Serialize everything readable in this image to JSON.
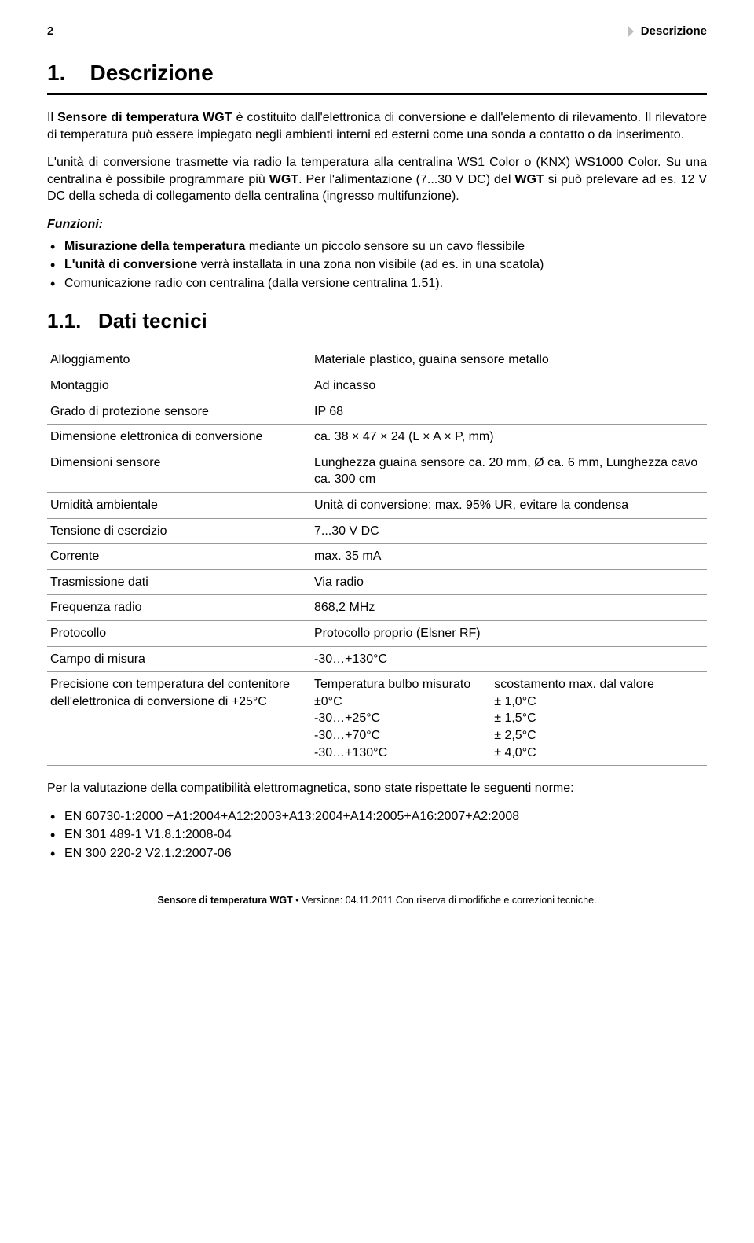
{
  "header": {
    "page_number": "2",
    "section_name": "Descrizione"
  },
  "section": {
    "number": "1.",
    "title": "Descrizione"
  },
  "para1_a": "Il ",
  "para1_b": "Sensore di temperatura WGT",
  "para1_c": " è costituito dall'elettronica di conversione e dall'elemento di rilevamento. Il rilevatore di temperatura può essere impiegato negli ambienti interni ed esterni come una sonda a contatto o da inserimento.",
  "para2_a": "L'unità di conversione trasmette via radio la temperatura alla centralina WS1 Color o (KNX) WS1000 Color. Su una centralina è possibile programmare più ",
  "para2_b": "WGT",
  "para2_c": ". Per l'alimentazione (7...30 V DC) del ",
  "para2_d": "WGT",
  "para2_e": " si può prelevare ad es. 12 V DC della scheda di collegamento della centralina (ingresso multifunzione).",
  "funzioni_label": "Funzioni:",
  "bullets1": [
    {
      "b": "Misurazione della temperatura",
      "rest": " mediante un piccolo sensore su un cavo flessibile"
    },
    {
      "b": "L'unità di conversione",
      "rest": " verrà installata in una zona non visibile (ad es. in una scatola)"
    },
    {
      "b": "",
      "rest": "Comunicazione radio con centralina (dalla versione centralina 1.51)."
    }
  ],
  "subsection": {
    "number": "1.1.",
    "title": "Dati tecnici"
  },
  "spec_rows": [
    {
      "label": "Alloggiamento",
      "value": "Materiale plastico, guaina sensore metallo"
    },
    {
      "label": "Montaggio",
      "value": "Ad incasso"
    },
    {
      "label": "Grado di protezione sensore",
      "value": "IP 68"
    },
    {
      "label": "Dimensione elettronica di conversione",
      "value": "ca. 38 × 47 × 24 (L × A × P, mm)"
    },
    {
      "label": "Dimensioni sensore",
      "value": "Lunghezza guaina sensore ca. 20 mm, Ø ca. 6 mm, Lunghezza cavo ca. 300 cm"
    },
    {
      "label": "Umidità ambientale",
      "value": "Unità di conversione: max. 95% UR, evitare la condensa"
    },
    {
      "label": "Tensione di esercizio",
      "value": "7...30 V DC"
    },
    {
      "label": "Corrente",
      "value": "max. 35 mA"
    },
    {
      "label": "Trasmissione dati",
      "value": "Via radio"
    },
    {
      "label": "Frequenza radio",
      "value": "868,2 MHz"
    },
    {
      "label": "Protocollo",
      "value": "Protocollo proprio (Elsner RF)"
    },
    {
      "label": "Campo di misura",
      "value": "-30…+130°C"
    }
  ],
  "precision_row": {
    "label": "Precisione con temperatura del contenitore dell'elettronica di conversione di +25°C",
    "col1_head": "Temperatura bulbo misurato",
    "col1": [
      "±0°C",
      "-30…+25°C",
      "-30…+70°C",
      "-30…+130°C"
    ],
    "col2_head": "scostamento max. dal valore",
    "col2": [
      "± 1,0°C",
      "± 1,5°C",
      "± 2,5°C",
      "± 4,0°C"
    ]
  },
  "after_table": "Per la valutazione della compatibilità elettromagnetica, sono state rispettate le seguenti norme:",
  "bullets2": [
    "EN 60730-1:2000 +A1:2004+A12:2003+A13:2004+A14:2005+A16:2007+A2:2008",
    "EN 301 489-1 V1.8.1:2008-04",
    "EN 300 220-2 V2.1.2:2007-06"
  ],
  "footer": {
    "product": "Sensore di temperatura WGT",
    "sep": " • ",
    "version_label": "Versione: ",
    "version": "04.11.2011",
    "note": " Con riserva di modifiche e correzioni tecniche."
  }
}
